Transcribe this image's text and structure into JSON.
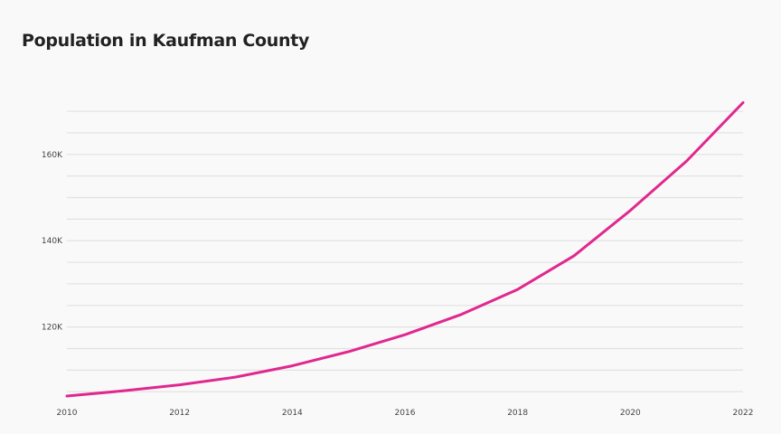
{
  "title": "Population in Kaufman County",
  "colors": {
    "line": "#e0288f",
    "grid": "#e2e2e2",
    "background": "#f9f9f9"
  },
  "chart_data": {
    "type": "line",
    "title": "Population in Kaufman County",
    "xlabel": "",
    "ylabel": "",
    "x": [
      2010,
      2011,
      2012,
      2013,
      2014,
      2015,
      2016,
      2017,
      2018,
      2019,
      2020,
      2021,
      2022
    ],
    "series": [
      {
        "values": [
          104000,
          105200,
          106600,
          108400,
          111000,
          114300,
          118200,
          122900,
          128700,
          136500,
          147000,
          158500,
          172000
        ]
      }
    ],
    "xticks": [
      2010,
      2012,
      2014,
      2016,
      2018,
      2020,
      2022
    ],
    "xtick_labels": [
      "2010",
      "2012",
      "2014",
      "2016",
      "2018",
      "2020",
      "2022"
    ],
    "yticks": [
      120000,
      140000,
      160000
    ],
    "ytick_labels": [
      "120K",
      "140K",
      "160K"
    ],
    "xlim": [
      2010,
      2022
    ],
    "ylim": [
      104000,
      174000
    ],
    "gridlines_y": [
      105000,
      110000,
      115000,
      120000,
      125000,
      130000,
      135000,
      140000,
      145000,
      150000,
      155000,
      160000,
      165000,
      170000
    ],
    "grid": true,
    "legend": "none"
  }
}
